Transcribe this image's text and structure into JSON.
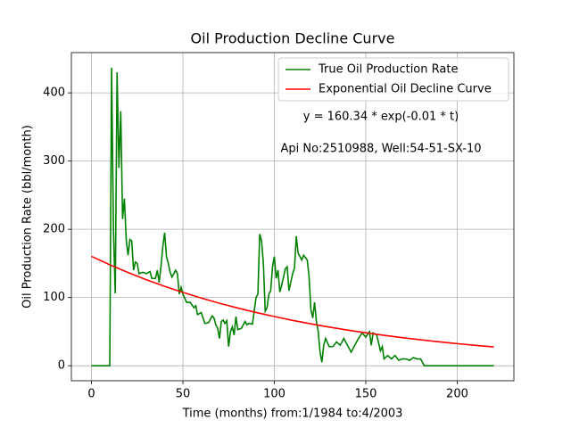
{
  "chart_data": {
    "type": "line",
    "title": "Oil Production Decline Curve",
    "xlabel": "Time (months) from:1/1984 to:4/2003",
    "ylabel": "Oil Production Rate (bbl/month)",
    "annotations": [
      "y = 160.34 * exp(-0.01 * t)",
      "Api No:2510988, Well:54-51-SX-10"
    ],
    "xlim": [
      -11,
      231
    ],
    "ylim": [
      -22,
      459
    ],
    "xticks": [
      0,
      50,
      100,
      150,
      200
    ],
    "yticks": [
      0,
      100,
      200,
      300,
      400
    ],
    "grid": true,
    "legend": "upper right",
    "series": [
      {
        "name": "True Oil Production Rate",
        "color": "#008000",
        "x": [
          0,
          10,
          11,
          12,
          13,
          14,
          15,
          16,
          17,
          18,
          19,
          20,
          21,
          22,
          23,
          24,
          25,
          26,
          28,
          30,
          32,
          33,
          35,
          36,
          37,
          38,
          39,
          40,
          41,
          42,
          43,
          44,
          46,
          47,
          48,
          49,
          50,
          52,
          54,
          56,
          57,
          58,
          60,
          62,
          64,
          66,
          67,
          68,
          69,
          70,
          71,
          72,
          73,
          74,
          75,
          76,
          77,
          78,
          79,
          80,
          82,
          84,
          85,
          86,
          88,
          90,
          91,
          92,
          93,
          94,
          95,
          96,
          97,
          98,
          99,
          100,
          101,
          102,
          103,
          104,
          106,
          107,
          108,
          110,
          111,
          112,
          113,
          114,
          115,
          116,
          118,
          119,
          120,
          121,
          122,
          123,
          124,
          125,
          126,
          127,
          128,
          130,
          132,
          134,
          136,
          138,
          140,
          142,
          143,
          145,
          146,
          148,
          150,
          152,
          153,
          154,
          156,
          158,
          159,
          160,
          162,
          164,
          166,
          168,
          170,
          172,
          174,
          176,
          178,
          180,
          182,
          220
        ],
        "values": [
          0,
          0,
          437,
          200,
          106,
          430,
          290,
          373,
          215,
          245,
          185,
          162,
          185,
          183,
          140,
          152,
          150,
          135,
          137,
          135,
          138,
          128,
          128,
          140,
          122,
          145,
          175,
          195,
          160,
          150,
          137,
          130,
          140,
          135,
          105,
          115,
          105,
          93,
          93,
          85,
          88,
          75,
          78,
          62,
          63,
          73,
          70,
          60,
          55,
          40,
          65,
          67,
          62,
          66,
          28,
          50,
          57,
          45,
          72,
          53,
          55,
          65,
          60,
          62,
          61,
          100,
          105,
          193,
          183,
          150,
          80,
          85,
          105,
          110,
          145,
          160,
          128,
          140,
          108,
          118,
          142,
          145,
          110,
          135,
          143,
          190,
          165,
          160,
          155,
          162,
          155,
          130,
          82,
          70,
          93,
          65,
          50,
          20,
          5,
          30,
          40,
          28,
          28,
          35,
          30,
          40,
          30,
          20,
          25,
          35,
          40,
          48,
          42,
          50,
          30,
          48,
          45,
          22,
          28,
          10,
          15,
          10,
          15,
          8,
          10,
          10,
          8,
          12,
          10,
          10,
          0,
          0
        ]
      },
      {
        "name": "Exponential Oil Decline Curve",
        "color": "#ff0000",
        "x": [
          0,
          10,
          20,
          30,
          40,
          50,
          60,
          70,
          80,
          90,
          100,
          110,
          120,
          130,
          140,
          150,
          160,
          170,
          180,
          190,
          200,
          210,
          220
        ],
        "values": [
          160.34,
          148.0,
          136.6,
          126.1,
          116.4,
          107.5,
          99.2,
          91.6,
          84.6,
          78.1,
          72.1,
          66.5,
          61.4,
          56.7,
          52.3,
          48.3,
          44.6,
          41.2,
          38.0,
          35.1,
          32.4,
          29.9,
          27.6
        ]
      }
    ]
  }
}
